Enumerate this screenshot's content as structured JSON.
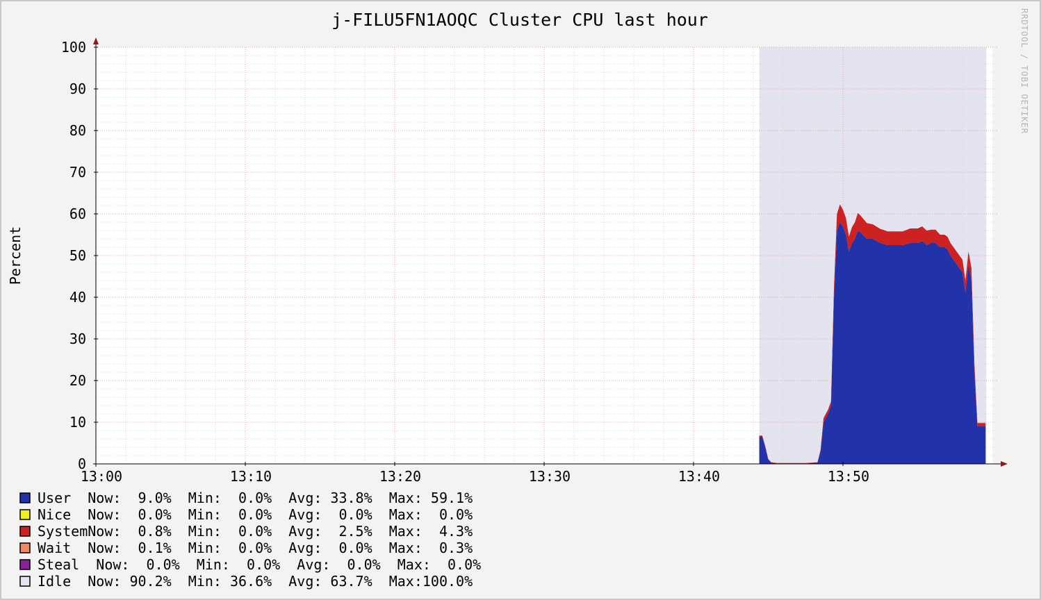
{
  "chart_data": {
    "type": "area",
    "title": "j-FILU5FN1AOQC Cluster CPU last hour",
    "ylabel": "Percent",
    "watermark": "RRDTOOL / TOBI OETIKER",
    "ylim": [
      0,
      100
    ],
    "y_ticks": [
      "0",
      "10",
      "20",
      "30",
      "40",
      "50",
      "60",
      "70",
      "80",
      "90",
      "100"
    ],
    "xlim_minutes": [
      0,
      60
    ],
    "x_ticks": [
      {
        "label": "13:00",
        "minute": 0
      },
      {
        "label": "13:10",
        "minute": 10
      },
      {
        "label": "13:20",
        "minute": 20
      },
      {
        "label": "13:30",
        "minute": 30
      },
      {
        "label": "13:40",
        "minute": 40
      },
      {
        "label": "13:50",
        "minute": 50
      }
    ],
    "shaded_region": {
      "start_minute": 44.4,
      "end_minute": 59.6,
      "color": "#e4e4f0"
    },
    "x": [
      44.4,
      44.6,
      44.8,
      45.0,
      45.2,
      45.6,
      46.5,
      47.5,
      48.3,
      48.5,
      48.7,
      49.0,
      49.2,
      49.4,
      49.6,
      49.8,
      50.0,
      50.2,
      50.4,
      50.6,
      50.8,
      51.0,
      51.2,
      51.6,
      52.0,
      52.5,
      53.0,
      53.5,
      54.0,
      54.5,
      55.0,
      55.3,
      55.6,
      55.9,
      56.2,
      56.5,
      56.8,
      57.0,
      57.2,
      57.4,
      57.6,
      57.8,
      58.0,
      58.2,
      58.4,
      58.6,
      58.8,
      59.0,
      59.2,
      59.4,
      59.55
    ],
    "series": [
      {
        "name": "User",
        "color": "#2233aa",
        "values": [
          6.5,
          6.5,
          4.0,
          1.0,
          0.3,
          0.1,
          0.1,
          0.1,
          0.3,
          3.0,
          10.0,
          12.0,
          14.0,
          40.0,
          56.0,
          58.0,
          57.0,
          55.0,
          51.0,
          53.0,
          54.0,
          56.0,
          55.5,
          54.0,
          54.0,
          53.0,
          52.5,
          52.5,
          52.5,
          53.0,
          53.0,
          53.5,
          52.5,
          53.0,
          53.0,
          52.0,
          52.0,
          51.5,
          50.0,
          49.0,
          48.0,
          47.0,
          46.0,
          41.0,
          48.0,
          44.0,
          22.0,
          9.0,
          9.0,
          9.0,
          9.0
        ]
      },
      {
        "name": "Nice",
        "color": "#eeee22",
        "values": [
          0,
          0,
          0,
          0,
          0,
          0,
          0,
          0,
          0,
          0,
          0,
          0,
          0,
          0,
          0,
          0,
          0,
          0,
          0,
          0,
          0,
          0,
          0,
          0,
          0,
          0,
          0,
          0,
          0,
          0,
          0,
          0,
          0,
          0,
          0,
          0,
          0,
          0,
          0,
          0,
          0,
          0,
          0,
          0,
          0,
          0,
          0,
          0,
          0,
          0,
          0
        ]
      },
      {
        "name": "System",
        "color": "#cc2222",
        "values": [
          0.3,
          0.3,
          0.3,
          0.2,
          0.1,
          0.1,
          0.1,
          0.1,
          0.1,
          0.4,
          1.0,
          1.0,
          1.0,
          2.5,
          4.0,
          4.3,
          4.0,
          4.0,
          3.5,
          3.8,
          4.0,
          4.2,
          4.0,
          3.8,
          3.5,
          3.4,
          3.3,
          3.3,
          3.3,
          3.5,
          3.5,
          3.5,
          3.5,
          3.2,
          3.2,
          3.0,
          3.0,
          3.0,
          3.0,
          3.0,
          3.0,
          3.0,
          3.0,
          3.0,
          3.0,
          3.0,
          2.0,
          0.8,
          0.8,
          0.8,
          0.8
        ]
      },
      {
        "name": "Wait",
        "color": "#ee8866",
        "values": [
          0,
          0,
          0,
          0,
          0,
          0,
          0,
          0,
          0,
          0,
          0,
          0,
          0,
          0,
          0,
          0,
          0,
          0,
          0,
          0,
          0,
          0,
          0,
          0,
          0,
          0,
          0,
          0,
          0,
          0,
          0,
          0,
          0,
          0,
          0,
          0,
          0,
          0,
          0,
          0,
          0,
          0,
          0,
          0,
          0,
          0,
          0,
          0.1,
          0.1,
          0.1,
          0.1
        ]
      }
    ],
    "legend": [
      {
        "name": "User",
        "color": "#2233aa",
        "line": "User  Now:  9.0%  Min:  0.0%  Avg: 33.8%  Max: 59.1%"
      },
      {
        "name": "Nice",
        "color": "#eeee22",
        "line": "Nice  Now:  0.0%  Min:  0.0%  Avg:  0.0%  Max:  0.0%"
      },
      {
        "name": "System",
        "color": "#cc2222",
        "line": "SystemNow:  0.8%  Min:  0.0%  Avg:  2.5%  Max:  4.3%"
      },
      {
        "name": "Wait",
        "color": "#ee8866",
        "line": "Wait  Now:  0.1%  Min:  0.0%  Avg:  0.0%  Max:  0.3%"
      },
      {
        "name": "Steal",
        "color": "#882299",
        "line": "Steal  Now:  0.0%  Min:  0.0%  Avg:  0.0%  Max:  0.0%"
      },
      {
        "name": "Idle",
        "color": "#e4e4f0",
        "line": "Idle  Now: 90.2%  Min: 36.6%  Avg: 63.7%  Max:100.0%"
      }
    ]
  }
}
